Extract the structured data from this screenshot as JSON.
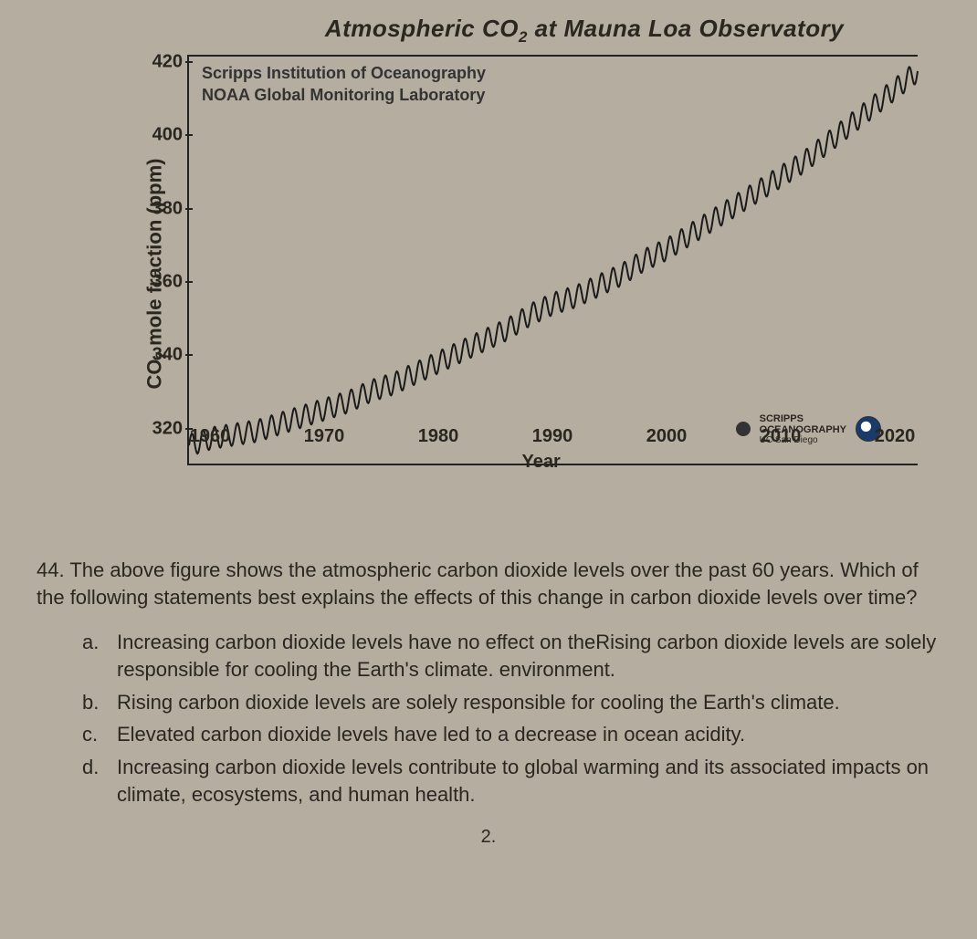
{
  "chart": {
    "type": "line",
    "title_html": "Atmospheric CO<sub>2</sub> at Mauna Loa Observatory",
    "ylabel_html": "CO<sub>2</sub> mole fraction (ppm)",
    "xlabel": "Year",
    "credits": [
      "Scripps Institution of Oceanography",
      "NOAA Global Monitoring Laboratory"
    ],
    "logo": {
      "scripps_line1": "SCRIPPS",
      "scripps_line2": "OCEANOGRAPHY",
      "scripps_line3": "UC San Diego"
    },
    "xlim": [
      1958,
      2022
    ],
    "ylim": [
      310,
      422
    ],
    "yticks": [
      320,
      340,
      360,
      380,
      400,
      420
    ],
    "xticks": [
      1960,
      1970,
      1980,
      1990,
      2000,
      2010,
      2020
    ],
    "line_color": "#1a1a1a",
    "line_width": 2,
    "background_color": "#b5ada0",
    "axis_color": "#222222",
    "tick_fontsize": 20,
    "title_fontsize": 26,
    "label_fontsize": 22,
    "oscillation_amplitude_ppm": 3,
    "oscillation_period_years": 1,
    "series": [
      {
        "x": 1958,
        "y": 315
      },
      {
        "x": 1960,
        "y": 317
      },
      {
        "x": 1962,
        "y": 318
      },
      {
        "x": 1964,
        "y": 319
      },
      {
        "x": 1966,
        "y": 321
      },
      {
        "x": 1968,
        "y": 323
      },
      {
        "x": 1970,
        "y": 325
      },
      {
        "x": 1972,
        "y": 327
      },
      {
        "x": 1974,
        "y": 330
      },
      {
        "x": 1976,
        "y": 332
      },
      {
        "x": 1978,
        "y": 335
      },
      {
        "x": 1980,
        "y": 338
      },
      {
        "x": 1982,
        "y": 341
      },
      {
        "x": 1984,
        "y": 344
      },
      {
        "x": 1986,
        "y": 347
      },
      {
        "x": 1988,
        "y": 351
      },
      {
        "x": 1990,
        "y": 354
      },
      {
        "x": 1992,
        "y": 356
      },
      {
        "x": 1994,
        "y": 359
      },
      {
        "x": 1996,
        "y": 362
      },
      {
        "x": 1998,
        "y": 366
      },
      {
        "x": 2000,
        "y": 369
      },
      {
        "x": 2002,
        "y": 373
      },
      {
        "x": 2004,
        "y": 377
      },
      {
        "x": 2006,
        "y": 381
      },
      {
        "x": 2008,
        "y": 385
      },
      {
        "x": 2010,
        "y": 389
      },
      {
        "x": 2012,
        "y": 393
      },
      {
        "x": 2014,
        "y": 398
      },
      {
        "x": 2016,
        "y": 403
      },
      {
        "x": 2018,
        "y": 408
      },
      {
        "x": 2020,
        "y": 413
      },
      {
        "x": 2022,
        "y": 418
      }
    ]
  },
  "question": {
    "number": "44.",
    "text": "The above figure shows the atmospheric carbon dioxide levels over the past 60 years. Which of the following statements best explains the effects of this change in carbon dioxide levels over time?",
    "options": [
      {
        "letter": "a.",
        "text": "Increasing carbon dioxide levels have no effect on theRising carbon dioxide levels are solely responsible for cooling the Earth's climate. environment."
      },
      {
        "letter": "b.",
        "text": "Rising carbon dioxide levels are solely responsible for cooling the Earth's climate."
      },
      {
        "letter": "c.",
        "text": "Elevated carbon dioxide levels have led to a decrease in ocean acidity."
      },
      {
        "letter": "d.",
        "text": "Increasing carbon dioxide levels contribute to global warming and its associated impacts on climate, ecosystems, and human health."
      }
    ]
  },
  "page_number": "2."
}
